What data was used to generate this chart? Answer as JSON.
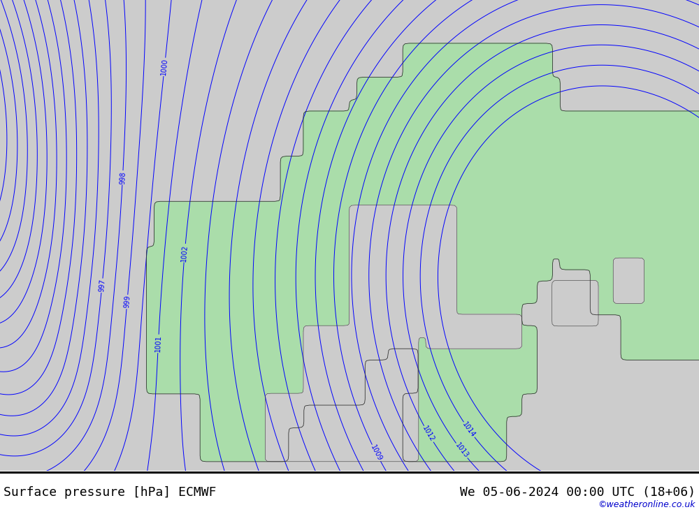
{
  "title_left": "Surface pressure [hPa] ECMWF",
  "title_right": "We 05-06-2024 00:00 UTC (18+06)",
  "watermark": "©weatheronline.co.uk",
  "background_color": "#cccccc",
  "land_color": "#aaddaa",
  "sea_color": "#cccccc",
  "contour_color": "#0000ff",
  "label_color": "#0000ff",
  "border_color": "#333333",
  "title_fontsize": 13,
  "watermark_fontsize": 9,
  "figsize": [
    10.0,
    7.33
  ],
  "dpi": 100,
  "lon_min": -5,
  "lon_max": 40,
  "lat_min": 54,
  "lat_max": 75
}
